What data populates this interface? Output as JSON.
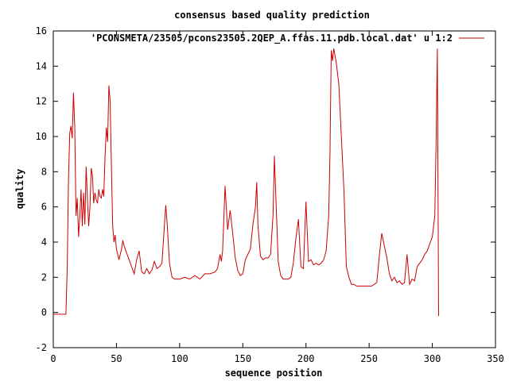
{
  "chart_data": {
    "type": "line",
    "title": "consensus based quality prediction",
    "xlabel": "sequence position",
    "ylabel": "quality",
    "xlim": [
      0,
      350
    ],
    "ylim": [
      -2,
      16
    ],
    "xticks": [
      0,
      50,
      100,
      150,
      200,
      250,
      300,
      350
    ],
    "yticks": [
      -2,
      0,
      2,
      4,
      6,
      8,
      10,
      12,
      14,
      16
    ],
    "grid": false,
    "legend_position": "top-right",
    "series": [
      {
        "name": "'PCONSMETA/23505/pcons23505.2QEP_A.ffas.11.pdb.local.dat' u 1:2",
        "color": "#cc0000",
        "x": [
          0,
          10,
          11,
          12,
          13,
          14,
          15,
          16,
          17,
          18,
          19,
          20,
          21,
          22,
          23,
          24,
          25,
          26,
          27,
          28,
          29,
          30,
          31,
          32,
          33,
          34,
          35,
          36,
          37,
          38,
          39,
          40,
          41,
          42,
          43,
          44,
          45,
          46,
          47,
          48,
          49,
          50,
          51,
          52,
          53,
          54,
          55,
          56,
          57,
          58,
          59,
          60,
          62,
          64,
          66,
          68,
          70,
          72,
          74,
          76,
          78,
          80,
          82,
          84,
          86,
          88,
          89,
          90,
          92,
          94,
          96,
          100,
          104,
          108,
          112,
          116,
          120,
          124,
          128,
          130,
          132,
          133,
          134,
          136,
          138,
          140,
          142,
          144,
          146,
          148,
          150,
          152,
          154,
          156,
          158,
          160,
          161,
          162,
          164,
          166,
          168,
          170,
          172,
          174,
          175,
          176,
          178,
          180,
          182,
          184,
          186,
          188,
          190,
          192,
          194,
          196,
          198,
          200,
          202,
          204,
          206,
          208,
          210,
          212,
          214,
          216,
          218,
          219,
          220,
          221,
          222,
          224,
          226,
          228,
          230,
          232,
          234,
          236,
          238,
          240,
          244,
          248,
          252,
          256,
          257,
          258,
          260,
          262,
          264,
          266,
          268,
          270,
          272,
          274,
          276,
          278,
          279,
          280,
          282,
          284,
          286,
          288,
          290,
          292,
          294,
          296,
          298,
          300,
          302,
          303,
          304,
          305
        ],
        "y": [
          -0.1,
          -0.1,
          2.5,
          7.5,
          10.2,
          10.6,
          9.9,
          12.5,
          10.5,
          5.5,
          6.5,
          4.3,
          5.5,
          7.0,
          4.9,
          6.8,
          5.0,
          8.3,
          6.5,
          4.9,
          6.0,
          8.2,
          7.8,
          6.2,
          6.8,
          6.4,
          6.2,
          7.0,
          6.6,
          6.5,
          7.0,
          6.6,
          8.9,
          10.5,
          9.7,
          12.9,
          12.0,
          8.2,
          4.9,
          4.0,
          4.4,
          3.6,
          3.3,
          3.0,
          3.3,
          3.6,
          4.1,
          3.8,
          3.6,
          3.4,
          3.2,
          3.0,
          2.6,
          2.2,
          3.0,
          3.5,
          2.3,
          2.2,
          2.5,
          2.2,
          2.4,
          2.9,
          2.5,
          2.6,
          2.8,
          5.0,
          6.1,
          5.2,
          2.8,
          2.0,
          1.9,
          1.9,
          2.0,
          1.9,
          2.1,
          1.9,
          2.2,
          2.2,
          2.3,
          2.5,
          3.3,
          2.9,
          3.5,
          7.2,
          4.7,
          5.8,
          4.5,
          3.1,
          2.4,
          2.1,
          2.2,
          3.0,
          3.3,
          3.6,
          5.0,
          6.0,
          7.4,
          5.0,
          3.2,
          3.0,
          3.1,
          3.1,
          3.3,
          5.6,
          8.9,
          6.9,
          2.9,
          2.1,
          1.9,
          1.9,
          1.9,
          2.0,
          2.8,
          4.2,
          5.3,
          2.6,
          2.5,
          6.3,
          2.9,
          3.0,
          2.7,
          2.8,
          2.7,
          2.8,
          3.0,
          3.5,
          5.5,
          9.0,
          14.9,
          14.3,
          15.0,
          14.2,
          13.0,
          10.0,
          7.0,
          2.6,
          2.0,
          1.6,
          1.6,
          1.5,
          1.5,
          1.5,
          1.5,
          1.7,
          2.4,
          3.2,
          4.5,
          3.8,
          3.1,
          2.2,
          1.8,
          2.0,
          1.7,
          1.8,
          1.6,
          1.7,
          2.5,
          3.3,
          1.6,
          1.9,
          1.8,
          2.6,
          2.8,
          3.0,
          3.3,
          3.5,
          3.9,
          4.3,
          5.5,
          9.5,
          15.0,
          -0.2
        ]
      }
    ]
  }
}
